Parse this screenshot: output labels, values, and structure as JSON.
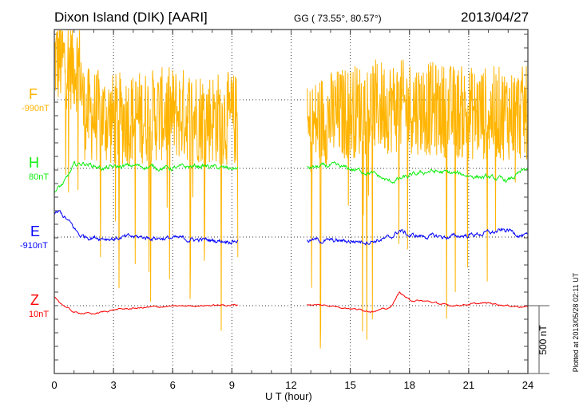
{
  "title": "Dixon Island (DIK)  [AARI]",
  "coords": "GG ( 73.55°,  80.57°)",
  "date": "2013/04/27",
  "plotted_at": "Plotted at 2013/05/28 02:11  UT",
  "colors": {
    "F": "#ffb400",
    "H": "#11ee11",
    "E": "#0000ff",
    "Z": "#ff0000"
  },
  "chart_data": {
    "type": "line",
    "xlabel": "U T (hour)",
    "xlim": [
      0,
      24
    ],
    "xticks": [
      "0",
      "3",
      "6",
      "9",
      "12",
      "15",
      "18",
      "21",
      "24"
    ],
    "scale_bar_label": "500 nT",
    "scale_bar_nT": 500,
    "data_gap_hours": [
      9.3,
      12.8
    ],
    "series": [
      {
        "name": "F",
        "baseline_label": "-990nT",
        "noise_nT": 350,
        "spike_nT": -1300,
        "profile": [
          [
            0,
            300
          ],
          [
            1.3,
            250
          ],
          [
            1.5,
            -100
          ],
          [
            3,
            -150
          ],
          [
            6,
            -100
          ],
          [
            9.3,
            -150
          ],
          [
            12.8,
            -250
          ],
          [
            13.5,
            -150
          ],
          [
            16,
            -50
          ],
          [
            18,
            -50
          ],
          [
            21,
            -100
          ],
          [
            24,
            -100
          ]
        ]
      },
      {
        "name": "H",
        "baseline_label": "80nT",
        "noise_nT": 12,
        "spike_nT": 0,
        "profile": [
          [
            0,
            -170
          ],
          [
            0.5,
            -110
          ],
          [
            1,
            20
          ],
          [
            1.5,
            40
          ],
          [
            2.5,
            0
          ],
          [
            4,
            20
          ],
          [
            6,
            0
          ],
          [
            7.5,
            20
          ],
          [
            8.5,
            0
          ],
          [
            9.3,
            0
          ],
          [
            12.8,
            0
          ],
          [
            14,
            20
          ],
          [
            16,
            -30
          ],
          [
            17,
            -100
          ],
          [
            18,
            -60
          ],
          [
            19,
            -20
          ],
          [
            21,
            -50
          ],
          [
            23,
            -90
          ],
          [
            24,
            0
          ]
        ]
      },
      {
        "name": "E",
        "baseline_label": "-910nT",
        "noise_nT": 12,
        "spike_nT": 0,
        "profile": [
          [
            0,
            170
          ],
          [
            0.3,
            180
          ],
          [
            0.8,
            100
          ],
          [
            1.3,
            10
          ],
          [
            2,
            0
          ],
          [
            3,
            -10
          ],
          [
            4,
            0
          ],
          [
            6,
            -10
          ],
          [
            8,
            -25
          ],
          [
            9.3,
            -25
          ],
          [
            12.8,
            -20
          ],
          [
            14,
            -30
          ],
          [
            16,
            -30
          ],
          [
            17,
            -10
          ],
          [
            17.5,
            50
          ],
          [
            18,
            10
          ],
          [
            20,
            0
          ],
          [
            22,
            30
          ],
          [
            23,
            50
          ],
          [
            24,
            0
          ]
        ]
      },
      {
        "name": "Z",
        "baseline_label": "10nT",
        "noise_nT": 4,
        "spike_nT": 0,
        "profile": [
          [
            0,
            60
          ],
          [
            0.4,
            10
          ],
          [
            1,
            -50
          ],
          [
            2,
            -60
          ],
          [
            3,
            -30
          ],
          [
            5,
            -10
          ],
          [
            7,
            0
          ],
          [
            9.3,
            5
          ],
          [
            12.8,
            10
          ],
          [
            14,
            0
          ],
          [
            15,
            -20
          ],
          [
            16,
            -40
          ],
          [
            17,
            -20
          ],
          [
            17.5,
            100
          ],
          [
            18,
            40
          ],
          [
            19,
            30
          ],
          [
            20,
            0
          ],
          [
            22,
            20
          ],
          [
            23,
            0
          ],
          [
            24,
            -10
          ]
        ]
      }
    ]
  }
}
